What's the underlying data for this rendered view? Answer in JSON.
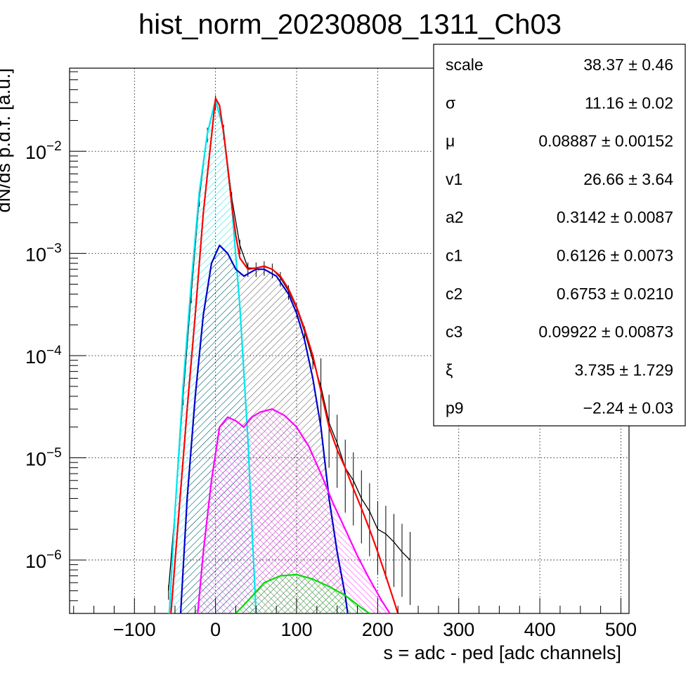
{
  "chart_data": {
    "type": "line",
    "title": "hist_norm_20230808_1311_Ch03",
    "xlabel": "s = adc - ped [adc channels]",
    "ylabel": "dN/ds p.d.f. [a.u.]",
    "xlim": [
      -180,
      510
    ],
    "ylim": [
      3e-07,
      0.065
    ],
    "yscale": "log",
    "grid": true,
    "x_ticks": [
      -100,
      0,
      100,
      200,
      300,
      400,
      500
    ],
    "x_tick_labels": [
      "−100",
      "0",
      "100",
      "200",
      "300",
      "400",
      "500"
    ],
    "y_ticks": [
      {
        "value": 1e-06,
        "base": "10",
        "exp": "−6"
      },
      {
        "value": 1e-05,
        "base": "10",
        "exp": "−5"
      },
      {
        "value": 0.0001,
        "base": "10",
        "exp": "−4"
      },
      {
        "value": 0.001,
        "base": "10",
        "exp": "−3"
      },
      {
        "value": 0.01,
        "base": "10",
        "exp": "−2"
      }
    ],
    "series": [
      {
        "color": "#ff0000",
        "style": "line",
        "points": [
          [
            -55,
            3e-07
          ],
          [
            -45,
            3e-06
          ],
          [
            -35,
            3e-05
          ],
          [
            -25,
            0.00025
          ],
          [
            -15,
            0.0025
          ],
          [
            -5,
            0.014
          ],
          [
            0,
            0.033
          ],
          [
            5,
            0.028
          ],
          [
            10,
            0.015
          ],
          [
            15,
            0.007
          ],
          [
            20,
            0.003
          ],
          [
            25,
            0.0015
          ],
          [
            30,
            0.0009
          ],
          [
            40,
            0.0007
          ],
          [
            50,
            0.00072
          ],
          [
            60,
            0.00075
          ],
          [
            70,
            0.0007
          ],
          [
            80,
            0.0006
          ],
          [
            90,
            0.00045
          ],
          [
            100,
            0.0003
          ],
          [
            110,
            0.00018
          ],
          [
            120,
            0.0001
          ],
          [
            130,
            4.5e-05
          ],
          [
            140,
            2e-05
          ],
          [
            150,
            1.2e-05
          ],
          [
            160,
            8e-06
          ],
          [
            170,
            5e-06
          ],
          [
            180,
            3.2e-06
          ],
          [
            190,
            2e-06
          ],
          [
            200,
            1.2e-06
          ],
          [
            210,
            7e-07
          ],
          [
            220,
            4e-07
          ],
          [
            225,
            3e-07
          ]
        ]
      },
      {
        "color": "#00e5ee",
        "style": "line",
        "fill": "hatch-cyan",
        "points": [
          [
            -57,
            3e-07
          ],
          [
            -50,
            3e-06
          ],
          [
            -40,
            5e-05
          ],
          [
            -30,
            0.0005
          ],
          [
            -20,
            0.004
          ],
          [
            -10,
            0.015
          ],
          [
            0,
            0.032
          ],
          [
            10,
            0.016
          ],
          [
            20,
            0.003
          ],
          [
            30,
            0.0003
          ],
          [
            40,
            1.5e-05
          ],
          [
            45,
            2e-06
          ],
          [
            50,
            3e-07
          ]
        ]
      },
      {
        "color": "#0000cc",
        "style": "line",
        "fill": "hatch-black",
        "points": [
          [
            -43,
            3e-07
          ],
          [
            -35,
            4e-06
          ],
          [
            -25,
            4e-05
          ],
          [
            -15,
            0.00025
          ],
          [
            -5,
            0.0008
          ],
          [
            5,
            0.0012
          ],
          [
            15,
            0.001
          ],
          [
            25,
            0.0007
          ],
          [
            35,
            0.0006
          ],
          [
            50,
            0.0007
          ],
          [
            60,
            0.0007
          ],
          [
            75,
            0.0006
          ],
          [
            90,
            0.0004
          ],
          [
            100,
            0.00026
          ],
          [
            110,
            0.00014
          ],
          [
            120,
            6e-05
          ],
          [
            130,
            2e-05
          ],
          [
            140,
            4e-06
          ],
          [
            150,
            1.2e-06
          ],
          [
            160,
            4.5e-07
          ],
          [
            163,
            3e-07
          ]
        ]
      },
      {
        "color": "#ff00ff",
        "style": "line",
        "fill": "hatch-magenta",
        "points": [
          [
            -22,
            3e-07
          ],
          [
            -15,
            1.2e-06
          ],
          [
            -5,
            6e-06
          ],
          [
            5,
            2e-05
          ],
          [
            15,
            2.5e-05
          ],
          [
            25,
            2.3e-05
          ],
          [
            35,
            2e-05
          ],
          [
            45,
            2.5e-05
          ],
          [
            55,
            2.8e-05
          ],
          [
            70,
            3e-05
          ],
          [
            85,
            2.6e-05
          ],
          [
            100,
            2e-05
          ],
          [
            115,
            1.3e-05
          ],
          [
            130,
            7e-06
          ],
          [
            145,
            3.6e-06
          ],
          [
            160,
            2e-06
          ],
          [
            175,
            1.1e-06
          ],
          [
            190,
            6.5e-07
          ],
          [
            205,
            4e-07
          ],
          [
            215,
            3e-07
          ]
        ]
      },
      {
        "color": "#00dd00",
        "style": "line",
        "fill": "hatch-green",
        "points": [
          [
            25,
            3e-07
          ],
          [
            40,
            4e-07
          ],
          [
            60,
            6e-07
          ],
          [
            80,
            7e-07
          ],
          [
            100,
            7.2e-07
          ],
          [
            120,
            6.5e-07
          ],
          [
            140,
            5.5e-07
          ],
          [
            160,
            4.5e-07
          ],
          [
            180,
            3.4e-07
          ],
          [
            190,
            3e-07
          ]
        ]
      },
      {
        "color": "#000000",
        "style": "data",
        "points": [
          [
            -58,
            5e-07
          ],
          [
            -50,
            3e-06
          ],
          [
            -40,
            4e-05
          ],
          [
            -30,
            0.0004
          ],
          [
            -20,
            0.0035
          ],
          [
            -10,
            0.015
          ],
          [
            0,
            0.031
          ],
          [
            10,
            0.016
          ],
          [
            20,
            0.0035
          ],
          [
            30,
            0.0012
          ],
          [
            40,
            0.00072
          ],
          [
            50,
            0.00072
          ],
          [
            60,
            0.00074
          ],
          [
            70,
            0.0007
          ],
          [
            80,
            0.00058
          ],
          [
            90,
            0.00043
          ],
          [
            100,
            0.00029
          ],
          [
            110,
            0.00017
          ],
          [
            120,
            9e-05
          ],
          [
            130,
            5e-05
          ],
          [
            140,
            2.2e-05
          ],
          [
            150,
            1.4e-05
          ],
          [
            160,
            8e-06
          ],
          [
            170,
            6e-06
          ],
          [
            180,
            4e-06
          ],
          [
            190,
            3e-06
          ],
          [
            200,
            2e-06
          ],
          [
            210,
            1.8e-06
          ],
          [
            220,
            1.5e-06
          ],
          [
            230,
            1.2e-06
          ],
          [
            240,
            1e-06
          ]
        ]
      }
    ]
  },
  "stats_box": [
    {
      "name": "scale",
      "value": "38.37 ± 0.46"
    },
    {
      "name": "σ",
      "value": "11.16 ± 0.02"
    },
    {
      "name": "μ",
      "value": "0.08887 ± 0.00152"
    },
    {
      "name": "v1",
      "value": "26.66 ± 3.64"
    },
    {
      "name": "a2",
      "value": "0.3142 ± 0.0087"
    },
    {
      "name": "c1",
      "value": "0.6126 ± 0.0073"
    },
    {
      "name": "c2",
      "value": "0.6753 ± 0.0210"
    },
    {
      "name": "c3",
      "value": "0.09922 ± 0.00873"
    },
    {
      "name": "ξ",
      "value": "3.735 ± 1.729"
    },
    {
      "name": "p9",
      "value": "−2.24 ± 0.03"
    }
  ]
}
